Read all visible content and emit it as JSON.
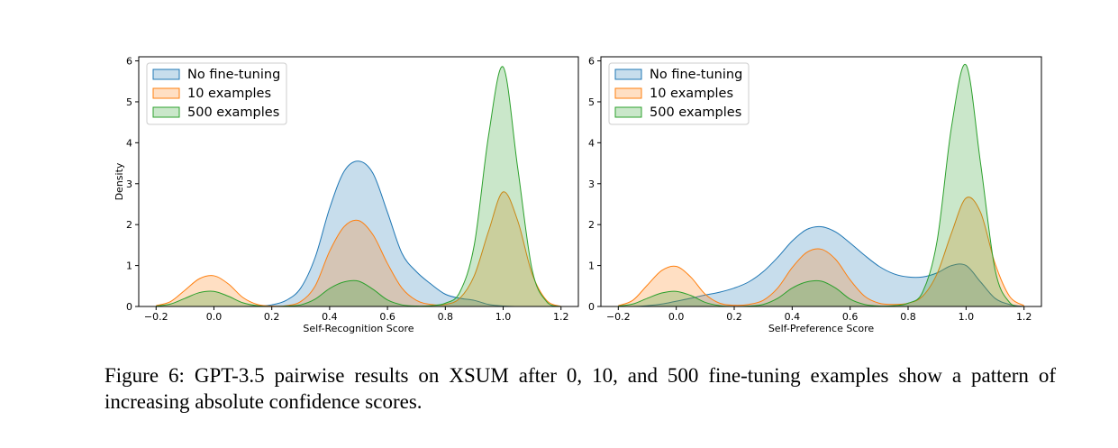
{
  "caption": "Figure 6: GPT-3.5 pairwise results on XSUM after 0, 10, and 500 fine-tuning examples show a pattern of increasing absolute confidence scores.",
  "chart_data": [
    {
      "type": "area",
      "subtype": "kde-density",
      "xlabel": "Self-Recognition Score",
      "ylabel": "Density",
      "xlim": [
        -0.26,
        1.26
      ],
      "ylim": [
        0,
        6.1
      ],
      "xticks": [
        "−0.2",
        "0.0",
        "0.2",
        "0.4",
        "0.6",
        "0.8",
        "1.0",
        "1.2"
      ],
      "yticks": [
        "0",
        "1",
        "2",
        "3",
        "4",
        "5",
        "6"
      ],
      "grid": false,
      "legend_position": "upper-left",
      "x": [
        -0.2,
        -0.15,
        -0.1,
        -0.05,
        0.0,
        0.05,
        0.1,
        0.15,
        0.2,
        0.25,
        0.3,
        0.35,
        0.4,
        0.45,
        0.5,
        0.55,
        0.6,
        0.65,
        0.7,
        0.75,
        0.8,
        0.85,
        0.9,
        0.95,
        1.0,
        1.05,
        1.1,
        1.15,
        1.2
      ],
      "series": [
        {
          "name": "No fine-tuning",
          "color": "#1f77b4",
          "values": [
            0,
            0,
            0,
            0,
            0,
            0,
            0,
            0.01,
            0.04,
            0.15,
            0.45,
            1.2,
            2.4,
            3.3,
            3.55,
            3.25,
            2.3,
            1.3,
            0.85,
            0.55,
            0.3,
            0.2,
            0.15,
            0.05,
            0.01,
            0,
            0,
            0,
            0
          ]
        },
        {
          "name": "10 examples",
          "color": "#ff7f0e",
          "values": [
            0.02,
            0.12,
            0.4,
            0.68,
            0.75,
            0.55,
            0.22,
            0.05,
            0.01,
            0.02,
            0.12,
            0.5,
            1.35,
            1.95,
            2.1,
            1.75,
            1.05,
            0.45,
            0.15,
            0.05,
            0.05,
            0.2,
            0.75,
            1.85,
            2.8,
            2.1,
            0.8,
            0.15,
            0
          ]
        },
        {
          "name": "500 examples",
          "color": "#2ca02c",
          "values": [
            0.01,
            0.06,
            0.2,
            0.34,
            0.37,
            0.25,
            0.09,
            0.02,
            0,
            0.01,
            0.04,
            0.18,
            0.44,
            0.6,
            0.62,
            0.42,
            0.16,
            0.04,
            0.01,
            0.02,
            0.08,
            0.35,
            1.5,
            4.2,
            5.85,
            3.4,
            0.9,
            0.12,
            0
          ]
        }
      ]
    },
    {
      "type": "area",
      "subtype": "kde-density",
      "xlabel": "Self-Preference Score",
      "ylabel": "",
      "xlim": [
        -0.26,
        1.26
      ],
      "ylim": [
        0,
        6.1
      ],
      "xticks": [
        "−0.2",
        "0.0",
        "0.2",
        "0.4",
        "0.6",
        "0.8",
        "1.0",
        "1.2"
      ],
      "yticks": [
        "0",
        "1",
        "2",
        "3",
        "4",
        "5",
        "6"
      ],
      "grid": false,
      "legend_position": "upper-left",
      "x": [
        -0.2,
        -0.15,
        -0.1,
        -0.05,
        0.0,
        0.05,
        0.1,
        0.15,
        0.2,
        0.25,
        0.3,
        0.35,
        0.4,
        0.45,
        0.5,
        0.55,
        0.6,
        0.65,
        0.7,
        0.75,
        0.8,
        0.85,
        0.9,
        0.95,
        1.0,
        1.05,
        1.1,
        1.15,
        1.2
      ],
      "series": [
        {
          "name": "No fine-tuning",
          "color": "#1f77b4",
          "values": [
            0,
            0,
            0.02,
            0.06,
            0.13,
            0.2,
            0.28,
            0.35,
            0.45,
            0.6,
            0.85,
            1.2,
            1.6,
            1.88,
            1.95,
            1.82,
            1.55,
            1.25,
            0.98,
            0.8,
            0.72,
            0.72,
            0.82,
            1.0,
            1.0,
            0.6,
            0.2,
            0.05,
            0
          ]
        },
        {
          "name": "10 examples",
          "color": "#ff7f0e",
          "values": [
            0.02,
            0.15,
            0.52,
            0.88,
            0.98,
            0.72,
            0.3,
            0.08,
            0.03,
            0.05,
            0.15,
            0.45,
            0.95,
            1.32,
            1.4,
            1.15,
            0.65,
            0.25,
            0.08,
            0.05,
            0.08,
            0.25,
            0.8,
            1.8,
            2.65,
            2.3,
            1.05,
            0.25,
            0.02
          ]
        },
        {
          "name": "500 examples",
          "color": "#2ca02c",
          "values": [
            0.01,
            0.06,
            0.2,
            0.33,
            0.37,
            0.27,
            0.1,
            0.02,
            0,
            0.01,
            0.05,
            0.2,
            0.45,
            0.6,
            0.62,
            0.45,
            0.18,
            0.05,
            0.01,
            0.02,
            0.08,
            0.35,
            1.6,
            4.4,
            5.9,
            3.5,
            0.9,
            0.1,
            0
          ]
        }
      ]
    }
  ]
}
